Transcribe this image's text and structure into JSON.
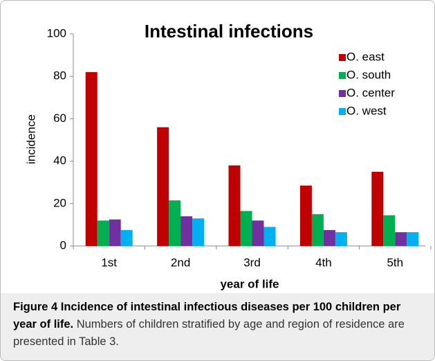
{
  "chart_data": {
    "type": "bar",
    "title": "Intestinal infections",
    "x_label": "year of life",
    "y_label": "incidence",
    "categories": [
      "1st",
      "2nd",
      "3rd",
      "4th",
      "5th"
    ],
    "series": [
      {
        "name": "O. east",
        "color": "#c00000",
        "values": [
          82,
          56,
          38,
          28.5,
          35
        ]
      },
      {
        "name": "O. south",
        "color": "#00b050",
        "values": [
          12,
          21.5,
          16.5,
          15,
          14.5
        ]
      },
      {
        "name": "O. center",
        "color": "#7030a0",
        "values": [
          12.5,
          14,
          12,
          7.5,
          6.5
        ]
      },
      {
        "name": "O. west",
        "color": "#00b0f0",
        "values": [
          7.5,
          13,
          9,
          6.5,
          6.5
        ]
      }
    ],
    "ylim": [
      0,
      100
    ],
    "yticks": [
      0,
      20,
      40,
      60,
      80,
      100
    ],
    "grid": false,
    "legend": "upper right"
  },
  "caption": {
    "label": "Figure 4 Incidence of intestinal infectious diseases per 100 children per year of life.",
    "text": "Numbers of children stratified by age and region of residence are presented in Table 3."
  }
}
